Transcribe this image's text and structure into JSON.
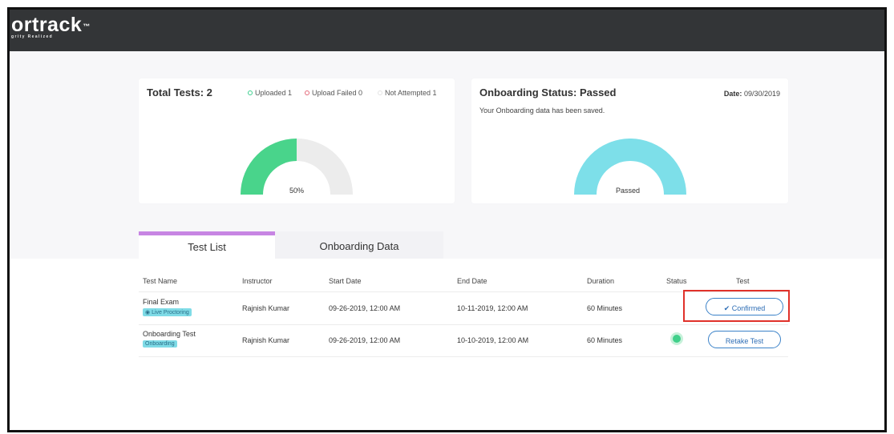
{
  "header": {
    "logo_text": "ortrack",
    "logo_tm": "™",
    "logo_subtext": "grity Realized"
  },
  "summary_card": {
    "title": "Total Tests: 2",
    "legend": [
      {
        "label": "Uploaded 1",
        "color": "#3ccf8e"
      },
      {
        "label": "Upload Failed 0",
        "color": "#e46a7a"
      },
      {
        "label": "Not Attempted 1",
        "color": "#dddddd"
      }
    ],
    "gauge_percent_label": "50%",
    "gauge_fill_fraction": 0.5,
    "gauge_color": "#49d48b",
    "gauge_track_color": "#ececec"
  },
  "onboarding_card": {
    "title": "Onboarding Status: Passed",
    "subtitle": "Your Onboarding data has been saved.",
    "date_label": "Date:",
    "date_value": "09/30/2019",
    "gauge_label": "Passed",
    "gauge_fill_fraction": 1.0,
    "gauge_color": "#7ddfe9"
  },
  "tabs": [
    {
      "label": "Test List",
      "active": true
    },
    {
      "label": "Onboarding Data",
      "active": false
    }
  ],
  "table": {
    "headers": [
      "Test Name",
      "Instructor",
      "Start Date",
      "End Date",
      "Duration",
      "Status",
      "Test"
    ],
    "rows": [
      {
        "name": "Final Exam",
        "tag": "Live Proctoring",
        "tag_icon": "eye-icon",
        "instructor": "Rajnish Kumar",
        "start": "09-26-2019, 12:00 AM",
        "end": "10-11-2019, 12:00 AM",
        "duration": "60 Minutes",
        "status": "",
        "action": "Confirmed",
        "action_icon": "checkmark-icon"
      },
      {
        "name": "Onboarding Test",
        "tag": "Onboarding",
        "instructor": "Rajnish Kumar",
        "start": "09-26-2019, 12:00 AM",
        "end": "10-10-2019, 12:00 AM",
        "duration": "60 Minutes",
        "status": "complete",
        "status_color": "#40d08a",
        "action": "Retake Test"
      }
    ]
  },
  "colors": {
    "topbar": "#333537",
    "tab_accent": "#c785e3",
    "button_border": "#3b82c8",
    "highlight": "#e0312a"
  }
}
